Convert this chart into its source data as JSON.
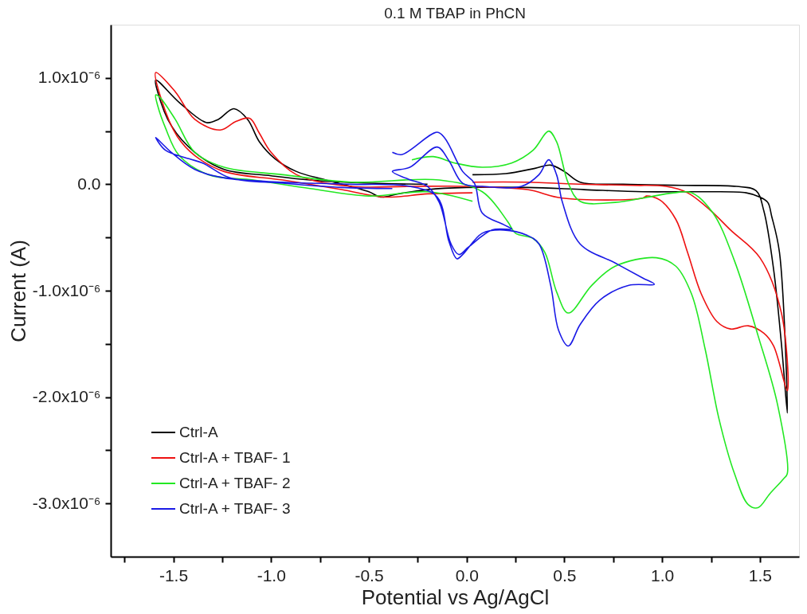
{
  "chart_data": {
    "type": "line",
    "title": "0.1 M TBAP in PhCN",
    "xlabel": "Potential vs Ag/AgCl",
    "ylabel": "Current (A)",
    "xlim": [
      -1.82,
      1.7
    ],
    "xticks": [
      {
        "value": -1.75,
        "label": null
      },
      -1.5,
      {
        "value": -1.25,
        "label": null
      },
      {
        "value": -1.0,
        "label": "-1.0"
      },
      {
        "value": -0.75,
        "label": null
      },
      -0.5,
      {
        "value": -0.25,
        "label": null
      },
      {
        "value": 0.0,
        "label": "0.0"
      },
      {
        "value": 0.25,
        "label": null
      },
      0.5,
      {
        "value": 0.75,
        "label": null
      },
      {
        "value": 1.0,
        "label": "1.0"
      },
      {
        "value": 1.25,
        "label": null
      },
      1.5
    ],
    "ylim": [
      -3.5e-06,
      1.5e-06
    ],
    "yticks": [
      {
        "value": 1e-06,
        "label": "1.0x10⁻⁶"
      },
      {
        "value": 5e-07,
        "label": null
      },
      {
        "value": 0,
        "label": "0.0"
      },
      {
        "value": -5e-07,
        "label": null
      },
      {
        "value": -1e-06,
        "label": "-1.0x10⁻⁶"
      },
      {
        "value": -1.5e-06,
        "label": null
      },
      {
        "value": -2e-06,
        "label": "-2.0x10⁻⁶"
      },
      {
        "value": -2.5e-06,
        "label": null
      },
      {
        "value": -3e-06,
        "label": "-3.0x10⁻⁶"
      }
    ],
    "grid": false,
    "legend": "bottom left",
    "marker": "none",
    "line_style": "solid",
    "series": [
      {
        "name": "Ctrl-A",
        "color": "#000000",
        "x": [
          0.03,
          0.2,
          0.35,
          0.43,
          0.5,
          0.58,
          0.8,
          1.1,
          1.38,
          1.48,
          1.52,
          1.57,
          1.61,
          1.64,
          1.6,
          1.56,
          1.54,
          1.5,
          1.43,
          1.2,
          0.9,
          0.6,
          0.31,
          0.0,
          -0.2,
          -0.35,
          -0.44,
          -0.5,
          -0.72,
          -0.87,
          -0.98,
          -1.06,
          -1.12,
          -1.19,
          -1.27,
          -1.33,
          -1.47,
          -1.59,
          -1.58,
          -1.51,
          -1.39,
          -1.24,
          -1.0,
          -0.8,
          -0.5,
          -0.2
        ],
        "values": [
          9e-08,
          1e-07,
          1.5e-07,
          1.8e-07,
          1.2e-07,
          2e-08,
          -0.0,
          -1e-08,
          -2e-08,
          -6e-08,
          -2.5e-07,
          -8e-07,
          -1.5e-06,
          -2.15e-06,
          -6.4e-07,
          -3e-07,
          -1.7e-07,
          -1.2e-07,
          -8e-08,
          -7e-08,
          -7e-08,
          -5e-08,
          -3e-08,
          -3e-08,
          -5e-08,
          -9e-08,
          -1.2e-07,
          -7e-08,
          4e-08,
          1.2e-07,
          2.4e-07,
          4e-07,
          6.1e-07,
          7.1e-07,
          6.1e-07,
          5.8e-07,
          7.7e-07,
          9.8e-07,
          8.7e-07,
          5.5e-07,
          3e-07,
          1.4e-07,
          8e-08,
          4e-08,
          1e-08,
          0.0
        ]
      },
      {
        "name": "Ctrl-A + TBAF- 1",
        "color": "#ee1111",
        "x": [
          0.03,
          0.3,
          0.6,
          0.85,
          1.02,
          1.13,
          1.25,
          1.35,
          1.5,
          1.61,
          1.64,
          1.57,
          1.52,
          1.44,
          1.35,
          1.28,
          1.2,
          1.13,
          1.07,
          0.99,
          0.92,
          0.9,
          0.49,
          0.31,
          0.01,
          -0.3,
          -0.59,
          -0.87,
          -1.0,
          -1.06,
          -1.11,
          -1.18,
          -1.26,
          -1.39,
          -1.49,
          -1.59,
          -1.56,
          -1.48,
          -1.39,
          -1.24,
          -0.94,
          -0.64,
          -0.42,
          -0.2,
          0.03
        ],
        "values": [
          2e-08,
          2e-08,
          0.0,
          -1e-08,
          -2e-08,
          -8e-08,
          -2.5e-07,
          -4.3e-07,
          -6.9e-07,
          -1.21e-06,
          -1.94e-06,
          -1.52e-06,
          -1.4e-06,
          -1.33e-06,
          -1.36e-06,
          -1.29e-06,
          -1.03e-06,
          -6.4e-07,
          -3.3e-07,
          -1.5e-07,
          -1.1e-07,
          -1.3e-07,
          -1.3e-07,
          -5e-08,
          -2e-08,
          -2e-08,
          -2e-08,
          9e-08,
          3e-07,
          4.8e-07,
          6.2e-07,
          5.9e-07,
          5.1e-07,
          6.1e-07,
          8.7e-07,
          1.05e-06,
          7.9e-07,
          4.5e-07,
          2.7e-07,
          1.2e-07,
          4e-08,
          -5e-08,
          -1.2e-07,
          -9e-08,
          -8e-08
        ]
      },
      {
        "name": "Ctrl-A + TBAF- 2",
        "color": "#22e822",
        "x": [
          -0.28,
          -0.17,
          -0.06,
          0.08,
          0.23,
          0.34,
          0.42,
          0.46,
          0.52,
          0.58,
          0.76,
          0.9,
          1.06,
          1.15,
          1.26,
          1.37,
          1.49,
          1.59,
          1.64,
          1.62,
          1.55,
          1.49,
          1.44,
          1.37,
          1.29,
          1.22,
          1.15,
          1.07,
          0.97,
          0.76,
          0.64,
          0.52,
          0.46,
          0.4,
          0.34,
          0.25,
          0.21,
          0.08,
          -0.14,
          -0.59,
          -0.94,
          -1.24,
          -1.39,
          -1.49,
          -1.57,
          -1.59,
          -1.58,
          -1.54,
          -1.47,
          -1.32,
          -1.09,
          -0.8,
          -0.5,
          -0.2,
          0.03
        ],
        "values": [
          2.3e-07,
          2.6e-07,
          2e-07,
          1.6e-07,
          2e-07,
          3.2e-07,
          5e-07,
          4e-07,
          1e-08,
          -1.6e-07,
          -1.7e-07,
          -1.3e-07,
          -8e-08,
          -8e-08,
          -2.7e-07,
          -7.2e-07,
          -1.42e-06,
          -2.07e-06,
          -2.72e-06,
          -2.77e-06,
          -2.91e-06,
          -3.04e-06,
          -3.01e-06,
          -2.72e-06,
          -2.2e-06,
          -1.55e-06,
          -1.03e-06,
          -7.7e-07,
          -6.9e-07,
          -7.7e-07,
          -9.5e-07,
          -1.21e-06,
          -1.01e-06,
          -6.4e-07,
          -5.1e-07,
          -4.6e-07,
          -3.5e-07,
          -7e-08,
          4e-08,
          2e-08,
          9e-08,
          1.6e-07,
          3e-07,
          6.1e-07,
          8.2e-07,
          8.4e-07,
          7.4e-07,
          5.3e-07,
          2.7e-07,
          9e-08,
          4e-08,
          -4e-08,
          -1.1e-07,
          -7e-08,
          -1.6e-07
        ]
      },
      {
        "name": "Ctrl-A + TBAF- 3",
        "color": "#1a1ae6",
        "x": [
          -0.38,
          -0.33,
          -0.15,
          -0.11,
          -0.02,
          0.04,
          0.08,
          0.19,
          0.23,
          0.13,
          0.01,
          -0.04,
          -0.08,
          -0.14,
          -0.2,
          -0.3,
          -0.38,
          -0.29,
          -0.15,
          -0.09,
          -0.02,
          0.08,
          0.28,
          0.37,
          0.42,
          0.46,
          0.49,
          0.58,
          0.76,
          0.9,
          0.96,
          0.83,
          0.68,
          0.58,
          0.52,
          0.47,
          0.43,
          0.37,
          0.31,
          0.19,
          0.08,
          -0.02,
          -0.05,
          -0.09,
          -0.15,
          -0.29,
          -0.59,
          -0.94,
          -1.24,
          -1.39,
          -1.51,
          -1.59,
          -1.54,
          -1.42,
          -1.35,
          -1.21,
          -0.94,
          -0.64,
          -0.38
        ],
        "values": [
          3e-07,
          2.8e-07,
          4.9e-07,
          4.3e-07,
          1.2e-07,
          1e-08,
          -2.7e-07,
          -3.8e-07,
          -4.2e-07,
          -4.3e-07,
          -5.9e-07,
          -6.6e-07,
          -5.6e-07,
          -1.7e-07,
          -2e-08,
          5e-08,
          1.2e-07,
          1.6e-07,
          3.5e-07,
          2.2e-07,
          1e-08,
          -2e-08,
          -2e-08,
          9e-08,
          2.3e-07,
          9e-08,
          -1.7e-07,
          -5.6e-07,
          -7.4e-07,
          -8.8e-07,
          -9.4e-07,
          -9.5e-07,
          -1.09e-06,
          -1.32e-06,
          -1.52e-06,
          -1.37e-06,
          -9.5e-07,
          -5.6e-07,
          -4.8e-07,
          -4.3e-07,
          -4.6e-07,
          -6.6e-07,
          -7e-07,
          -5.4e-07,
          -1.2e-07,
          -2e-08,
          0.0,
          2e-08,
          6e-08,
          1.4e-07,
          3e-07,
          4.4e-07,
          3.2e-07,
          2.4e-07,
          2e-07,
          6e-08,
          1e-08,
          -3e-08,
          -4e-08
        ]
      }
    ]
  }
}
